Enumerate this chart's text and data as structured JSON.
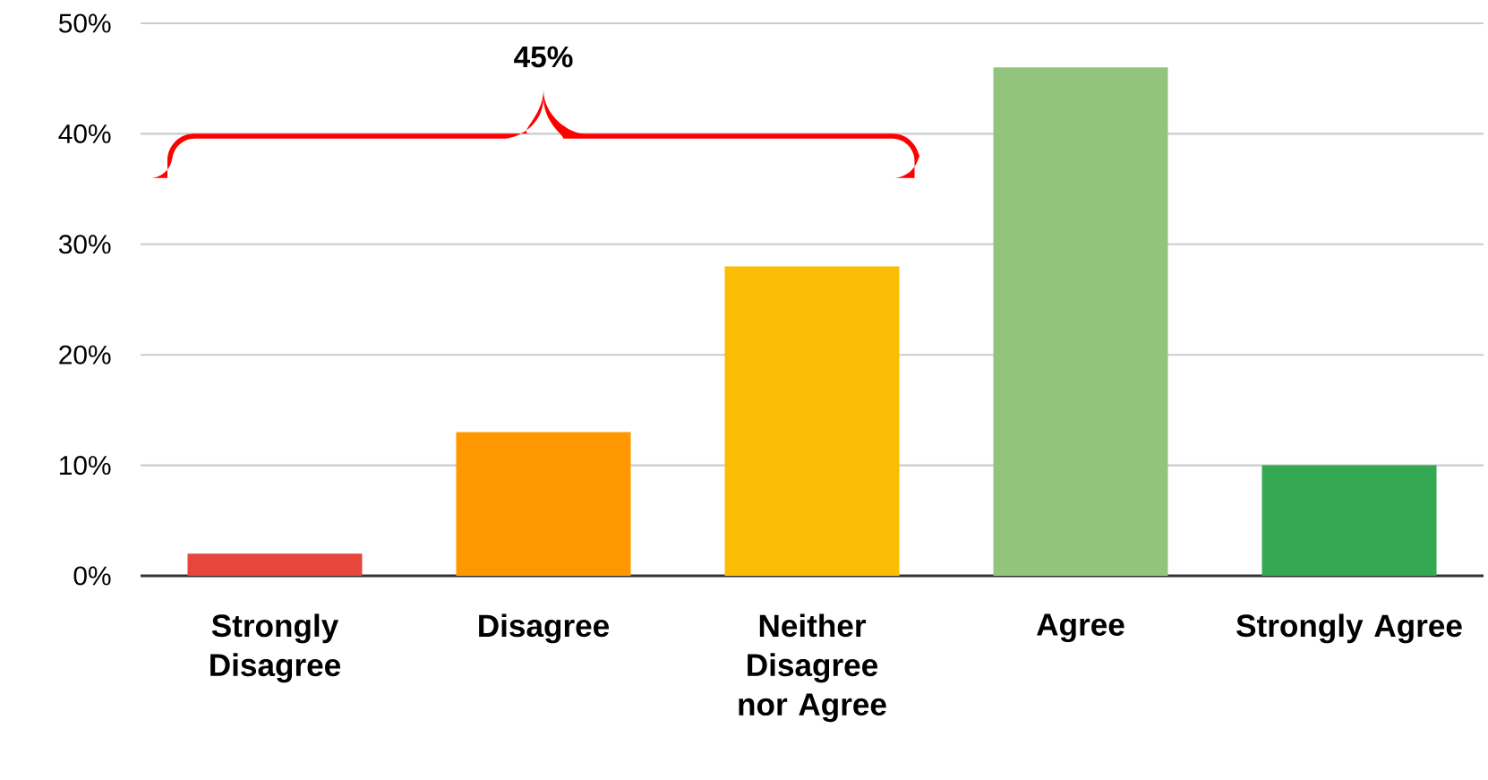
{
  "chart_data": {
    "type": "bar",
    "categories": [
      "Strongly Disagree",
      "Disagree",
      "Neither Disagree nor Agree",
      "Agree",
      "Strongly Agree"
    ],
    "values": [
      2,
      13,
      28,
      46,
      10
    ],
    "colors": [
      "#e8453c",
      "#ff9800",
      "#fbbc04",
      "#93c47d",
      "#34a853"
    ],
    "ylim": [
      0,
      50
    ],
    "yticks": [
      {
        "value": 0,
        "label": "0%"
      },
      {
        "value": 10,
        "label": "10%"
      },
      {
        "value": 20,
        "label": "20%"
      },
      {
        "value": 30,
        "label": "30%"
      },
      {
        "value": 40,
        "label": "40%"
      },
      {
        "value": 50,
        "label": "50%"
      }
    ],
    "grid": "y",
    "annotations": [
      "45%"
    ]
  }
}
